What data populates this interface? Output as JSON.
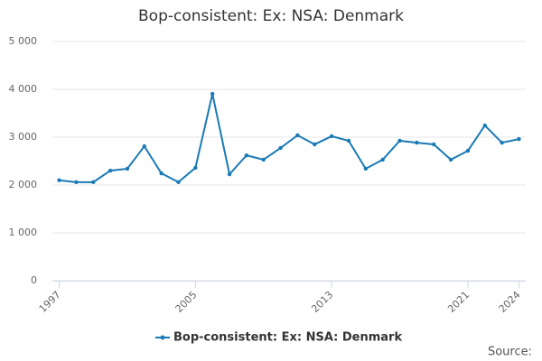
{
  "chart_data": {
    "type": "line",
    "title": "Bop-consistent: Ex: NSA: Denmark",
    "x": [
      1997,
      1998,
      1999,
      2000,
      2001,
      2002,
      2003,
      2004,
      2005,
      2006,
      2007,
      2008,
      2009,
      2010,
      2011,
      2012,
      2013,
      2014,
      2015,
      2016,
      2017,
      2018,
      2019,
      2020,
      2021,
      2022,
      2023,
      2024
    ],
    "series": [
      {
        "name": "Bop-consistent: Ex: NSA: Denmark",
        "color": "#1a7ab5",
        "values": [
          2100,
          2060,
          2060,
          2300,
          2340,
          2810,
          2245,
          2060,
          2360,
          3905,
          2225,
          2620,
          2530,
          2775,
          3040,
          2850,
          3020,
          2925,
          2340,
          2530,
          2925,
          2885,
          2850,
          2530,
          2715,
          3245,
          2885,
          2960
        ]
      }
    ],
    "xlim": [
      1996.6,
      2024.4
    ],
    "xticks": [
      1997,
      2005,
      2013,
      2021,
      2024
    ],
    "ylim": [
      0,
      5000
    ],
    "yticks": [
      0,
      {
        "value": 1000,
        "label": "1 000"
      },
      {
        "value": 2000,
        "label": "2 000"
      },
      {
        "value": 3000,
        "label": "3 000"
      },
      {
        "value": 4000,
        "label": "4 000"
      },
      {
        "value": 5000,
        "label": "5 000"
      }
    ],
    "grid": true,
    "legend": "bottom",
    "source": "Source:"
  }
}
